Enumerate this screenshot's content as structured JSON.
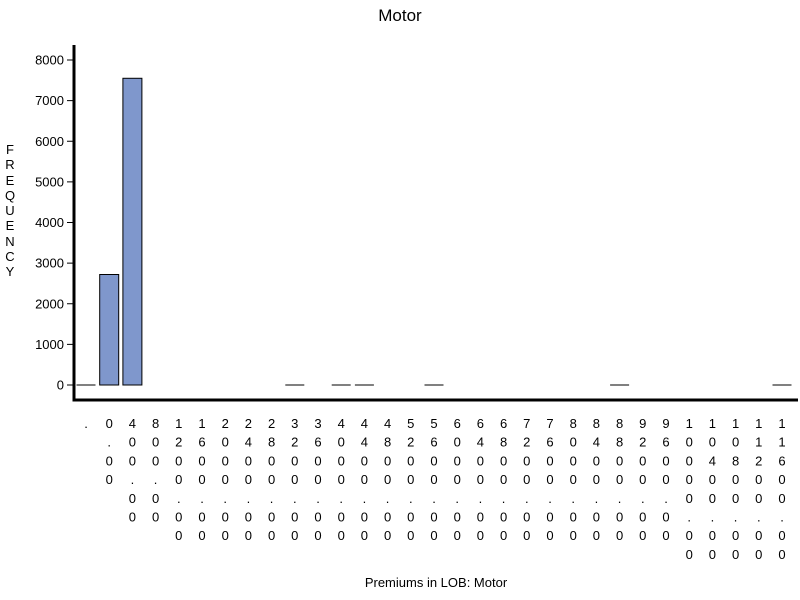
{
  "chart_data": {
    "type": "bar",
    "title": "Motor",
    "xlabel": "Premiums in LOB: Motor",
    "ylabel": "FREQUENCY",
    "ylim": [
      0,
      8300
    ],
    "yticks": [
      0,
      1000,
      2000,
      3000,
      4000,
      5000,
      6000,
      7000,
      8000
    ],
    "categories": [
      ".",
      "0.00",
      "400.00",
      "800.00",
      "1200.00",
      "1600.00",
      "2000.00",
      "2400.00",
      "2800.00",
      "3200.00",
      "3600.00",
      "4000.00",
      "4400.00",
      "4800.00",
      "5200.00",
      "5600.00",
      "6000.00",
      "6400.00",
      "6800.00",
      "7200.00",
      "7600.00",
      "8000.00",
      "8400.00",
      "8800.00",
      "9200.00",
      "9600.00",
      "10000.00",
      "10400.00",
      "10800.00",
      "11200.00",
      "11600.00"
    ],
    "values": [
      30,
      2720,
      7550,
      0,
      0,
      0,
      0,
      0,
      0,
      3,
      0,
      2,
      1,
      0,
      0,
      2,
      0,
      0,
      0,
      0,
      0,
      0,
      0,
      1,
      0,
      0,
      0,
      0,
      0,
      0,
      2
    ],
    "grid": false,
    "legend": "none",
    "bar_color": "#7f97cc",
    "bar_outline": "#000000"
  }
}
